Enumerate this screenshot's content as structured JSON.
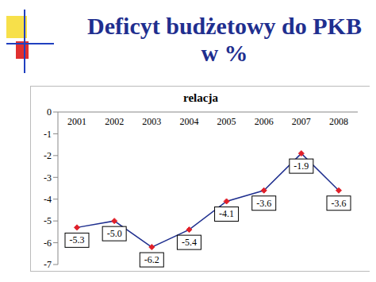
{
  "chart_data": {
    "type": "line",
    "title": "Deficyt budżetowy do PKB w %",
    "subtitle": "relacja",
    "categories": [
      "2001",
      "2002",
      "2003",
      "2004",
      "2005",
      "2006",
      "2007",
      "2008"
    ],
    "values": [
      -5.3,
      -5.0,
      -6.2,
      -5.4,
      -4.1,
      -3.6,
      -1.9,
      -3.6
    ],
    "value_labels": [
      "-5.3",
      "-5.0",
      "-6.2",
      "-5.4",
      "-4.1",
      "-3.6",
      "-1.9",
      "-3.6"
    ],
    "color": "#1f2f8f",
    "marker": "diamond",
    "ylim": [
      -7,
      0
    ],
    "yticks": [
      0,
      -1,
      -2,
      -3,
      -4,
      -5,
      -6,
      -7
    ],
    "grid": false,
    "data_labels": true
  }
}
